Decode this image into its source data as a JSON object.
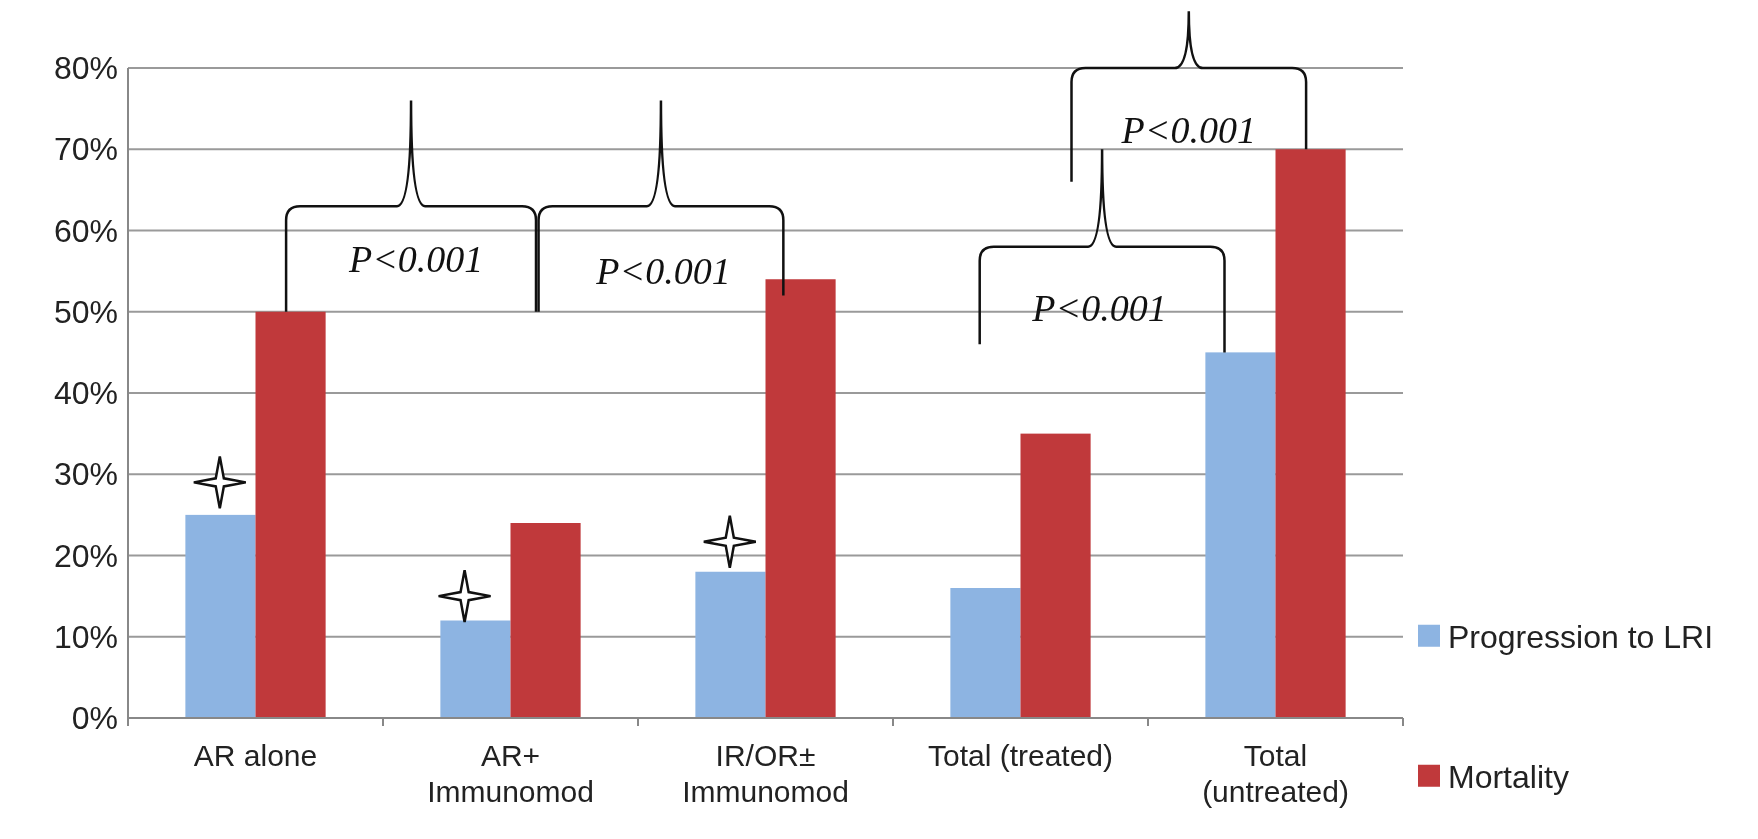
{
  "chart_data": {
    "type": "bar",
    "categories": [
      "AR alone",
      "AR+ Immunomod",
      "IR/OR± Immunomod",
      "Total (treated)",
      "Total (untreated)"
    ],
    "series": [
      {
        "name": "Progression to LRI",
        "color": "#8db4e2",
        "values": [
          25,
          12,
          18,
          16,
          45
        ]
      },
      {
        "name": "Mortality",
        "color": "#c0393b",
        "values": [
          50,
          24,
          54,
          35,
          70
        ]
      }
    ],
    "ylim": [
      0,
      80
    ],
    "yticks": [
      {
        "value": 0,
        "label": "0%"
      },
      {
        "value": 10,
        "label": "10%"
      },
      {
        "value": 20,
        "label": "20%"
      },
      {
        "value": 30,
        "label": "30%"
      },
      {
        "value": 40,
        "label": "40%"
      },
      {
        "value": 50,
        "label": "50%"
      },
      {
        "value": 60,
        "label": "60%"
      },
      {
        "value": 70,
        "label": "70%"
      },
      {
        "value": 80,
        "label": "80%"
      }
    ],
    "grid": "y",
    "legend": "right",
    "annotations": [
      "P<0.001",
      "P<0.001",
      "P<0.001",
      "P<0.001"
    ]
  }
}
